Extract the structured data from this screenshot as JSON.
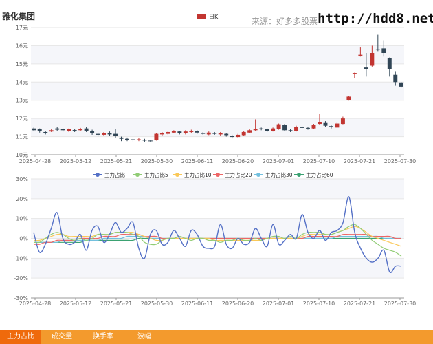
{
  "header": {
    "stock_name": "雅化集团",
    "source": "来源：好多多股票",
    "site": "http://hdd8.net"
  },
  "tabs": [
    {
      "label": "主力占比",
      "active": true
    },
    {
      "label": "成交量",
      "active": false
    },
    {
      "label": "换手率",
      "active": false
    },
    {
      "label": "波幅",
      "active": false
    }
  ],
  "chart_data": [
    {
      "type": "candlestick",
      "legend": [
        "日K"
      ],
      "legend_position": "top-center",
      "ylim": [
        10,
        17
      ],
      "y_ticks": [
        "10元",
        "11元",
        "12元",
        "13元",
        "14元",
        "15元",
        "16元",
        "17元"
      ],
      "x_ticks": [
        "2025-04-28",
        "2025-05-12",
        "2025-05-21",
        "2025-05-30",
        "2025-06-11",
        "2025-06-20",
        "2025-07-01",
        "2025-07-10",
        "2025-07-21",
        "2025-07-30"
      ],
      "up_color": "#c23531",
      "down_color": "#314656",
      "grid": true,
      "ohlc": [
        [
          11.45,
          11.35,
          11.3,
          11.5
        ],
        [
          11.4,
          11.3,
          11.22,
          11.45
        ],
        [
          11.25,
          11.2,
          11.12,
          11.3
        ],
        [
          11.28,
          11.35,
          11.25,
          11.42
        ],
        [
          11.45,
          11.38,
          11.3,
          11.52
        ],
        [
          11.4,
          11.35,
          11.28,
          11.45
        ],
        [
          11.3,
          11.4,
          11.25,
          11.45
        ],
        [
          11.36,
          11.32,
          11.25,
          11.4
        ],
        [
          11.35,
          11.4,
          11.3,
          11.48
        ],
        [
          11.45,
          11.3,
          11.25,
          11.55
        ],
        [
          11.3,
          11.18,
          11.1,
          11.38
        ],
        [
          11.15,
          11.1,
          11.0,
          11.22
        ],
        [
          11.1,
          11.18,
          11.05,
          11.25
        ],
        [
          11.2,
          11.12,
          11.05,
          11.28
        ],
        [
          11.15,
          11.05,
          10.95,
          11.4
        ],
        [
          10.95,
          10.88,
          10.75,
          11.0
        ],
        [
          10.88,
          10.82,
          10.75,
          10.95
        ],
        [
          10.85,
          10.8,
          10.72,
          10.9
        ],
        [
          10.8,
          10.85,
          10.75,
          10.92
        ],
        [
          10.82,
          10.78,
          10.72,
          10.88
        ],
        [
          10.78,
          10.75,
          10.7,
          10.82
        ],
        [
          10.8,
          11.15,
          10.78,
          11.2
        ],
        [
          11.12,
          11.2,
          11.05,
          11.25
        ],
        [
          11.15,
          11.25,
          11.1,
          11.3
        ],
        [
          11.22,
          11.3,
          11.18,
          11.35
        ],
        [
          11.28,
          11.18,
          11.12,
          11.32
        ],
        [
          11.18,
          11.28,
          11.12,
          11.35
        ],
        [
          11.25,
          11.3,
          11.2,
          11.38
        ],
        [
          11.3,
          11.22,
          11.15,
          11.35
        ],
        [
          11.2,
          11.15,
          11.1,
          11.25
        ],
        [
          11.12,
          11.22,
          11.08,
          11.28
        ],
        [
          11.2,
          11.15,
          11.1,
          11.25
        ],
        [
          11.12,
          11.18,
          11.05,
          11.25
        ],
        [
          11.15,
          11.08,
          11.0,
          11.2
        ],
        [
          11.05,
          10.98,
          10.9,
          11.1
        ],
        [
          10.98,
          11.1,
          10.95,
          11.15
        ],
        [
          11.08,
          11.25,
          11.05,
          11.3
        ],
        [
          11.22,
          11.35,
          11.18,
          11.4
        ],
        [
          11.35,
          11.4,
          11.3,
          11.95
        ],
        [
          11.45,
          11.4,
          11.35,
          11.5
        ],
        [
          11.4,
          11.3,
          11.25,
          11.45
        ],
        [
          11.3,
          11.45,
          11.28,
          11.5
        ],
        [
          11.42,
          11.68,
          11.38,
          11.72
        ],
        [
          11.65,
          11.35,
          11.3,
          11.7
        ],
        [
          11.35,
          11.32,
          11.25,
          11.4
        ],
        [
          11.3,
          11.55,
          11.28,
          11.6
        ],
        [
          11.55,
          11.48,
          11.4,
          11.6
        ],
        [
          11.48,
          11.45,
          11.38,
          11.52
        ],
        [
          11.45,
          11.65,
          11.4,
          11.7
        ],
        [
          11.7,
          11.8,
          11.65,
          12.25
        ],
        [
          11.75,
          11.6,
          11.55,
          11.85
        ],
        [
          11.58,
          11.52,
          11.45,
          11.62
        ],
        [
          11.5,
          11.72,
          11.48,
          11.78
        ],
        [
          11.7,
          12.0,
          11.68,
          12.1
        ],
        [
          13.0,
          13.2,
          12.98,
          13.22
        ],
        [
          14.5,
          14.5,
          14.2,
          14.52
        ],
        [
          15.45,
          15.5,
          15.4,
          15.9
        ],
        [
          14.8,
          14.7,
          14.3,
          15.6
        ],
        [
          14.9,
          15.6,
          14.85,
          16.0
        ],
        [
          15.8,
          15.75,
          15.7,
          16.6
        ],
        [
          15.85,
          15.6,
          15.4,
          16.3
        ],
        [
          15.3,
          14.7,
          14.3,
          15.35
        ],
        [
          14.4,
          14.0,
          13.8,
          14.6
        ],
        [
          13.98,
          13.75,
          13.7,
          14.0
        ]
      ]
    },
    {
      "type": "line",
      "ylim": [
        -30,
        30
      ],
      "y_ticks": [
        "-30%",
        "-20%",
        "-10%",
        "0%",
        "10%",
        "20%",
        "30%"
      ],
      "x_ticks": [
        "2025-04-28",
        "2025-05-12",
        "2025-05-21",
        "2025-05-30",
        "2025-06-11",
        "2025-06-20",
        "2025-07-01",
        "2025-07-10",
        "2025-07-21",
        "2025-07-30"
      ],
      "legend_position": "top-center",
      "grid": true,
      "series": [
        {
          "name": "主力占比",
          "color": "#5470c6",
          "values": [
            3,
            -7,
            -3,
            5,
            13,
            0,
            -3,
            -2,
            2,
            -6,
            4,
            6,
            -2,
            2,
            8,
            3,
            5,
            8,
            -5,
            -10,
            2,
            4,
            -3,
            -2,
            4,
            0,
            -4,
            4,
            2,
            -4,
            -5,
            -4,
            7,
            -3,
            -5,
            0,
            -3,
            -2,
            5,
            0,
            -4,
            7,
            -3,
            -1,
            2,
            0,
            12,
            3,
            0,
            4,
            -1,
            3,
            4,
            8,
            21,
            3,
            -5,
            -10,
            -12,
            -10,
            -6,
            -17,
            -14,
            -14
          ]
        },
        {
          "name": "主力占比5",
          "color": "#91cc75",
          "values": [
            -2,
            -2,
            0,
            2,
            3,
            2,
            0,
            -1,
            0,
            -1,
            0,
            2,
            2,
            2,
            3,
            3,
            3,
            2,
            1,
            -2,
            -3,
            -3,
            -1,
            0,
            0,
            1,
            0,
            -1,
            0,
            0,
            -1,
            -1,
            -2,
            -1,
            -1,
            0,
            -1,
            -1,
            0,
            -1,
            0,
            1,
            1,
            0,
            1,
            0,
            2,
            3,
            3,
            3,
            2,
            2,
            3,
            4,
            6,
            7,
            5,
            2,
            -1,
            -3,
            -5,
            -6,
            -7,
            -9
          ]
        },
        {
          "name": "主力占比10",
          "color": "#fac858",
          "values": [
            -1,
            -1,
            0,
            1,
            2,
            2,
            1,
            1,
            1,
            1,
            1,
            2,
            2,
            2,
            3,
            3,
            3,
            3,
            2,
            1,
            0,
            -1,
            -1,
            0,
            0,
            0,
            0,
            0,
            0,
            0,
            0,
            -1,
            -1,
            -1,
            -1,
            -1,
            -1,
            -1,
            -1,
            -1,
            0,
            0,
            0,
            0,
            0,
            0,
            1,
            2,
            2,
            2,
            2,
            2,
            3,
            4,
            5,
            6,
            5,
            3,
            1,
            0,
            -1,
            -2,
            -3,
            -4
          ]
        },
        {
          "name": "主力占比20",
          "color": "#ee6666",
          "values": [
            -3,
            -3,
            -2,
            -2,
            -1,
            -1,
            -1,
            -1,
            0,
            0,
            0,
            0,
            1,
            1,
            1,
            2,
            2,
            2,
            2,
            1,
            1,
            1,
            0,
            0,
            0,
            0,
            0,
            0,
            0,
            0,
            0,
            0,
            0,
            0,
            0,
            0,
            0,
            0,
            0,
            0,
            0,
            0,
            0,
            0,
            0,
            0,
            0,
            1,
            1,
            1,
            1,
            1,
            1,
            2,
            2,
            2,
            2,
            2,
            1,
            1,
            1,
            1,
            0,
            0
          ]
        },
        {
          "name": "主力占比30",
          "color": "#73c0de",
          "values": [
            -2,
            -2,
            -2,
            -2,
            -2,
            -1,
            -1,
            -1,
            -1,
            -1,
            -1,
            -1,
            0,
            0,
            0,
            0,
            1,
            1,
            1,
            1,
            0,
            0,
            0,
            0,
            0,
            0,
            0,
            0,
            0,
            0,
            0,
            0,
            0,
            0,
            0,
            0,
            0,
            0,
            0,
            0,
            0,
            0,
            0,
            0,
            0,
            0,
            0,
            0,
            0,
            0,
            0,
            0,
            1,
            1,
            1,
            1,
            1,
            1,
            1,
            1,
            0,
            0,
            0,
            0
          ]
        },
        {
          "name": "主力占比60",
          "color": "#3ba272",
          "values": [
            -2,
            -2,
            -2,
            -2,
            -2,
            -2,
            -2,
            -2,
            -2,
            -1,
            -1,
            -1,
            -1,
            -1,
            -1,
            -1,
            -1,
            -1,
            0,
            0,
            0,
            0,
            0,
            0,
            0,
            0,
            0,
            0,
            0,
            0,
            0,
            0,
            0,
            0,
            0,
            0,
            0,
            0,
            0,
            0,
            0,
            0,
            0,
            0,
            0,
            0,
            0,
            0,
            0,
            0,
            0,
            0,
            0,
            0,
            0,
            0,
            0,
            0,
            0,
            0,
            0,
            0,
            0,
            0
          ]
        }
      ]
    }
  ]
}
